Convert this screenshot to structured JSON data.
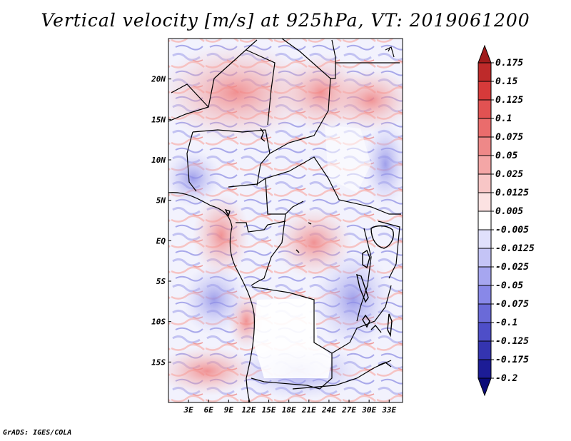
{
  "title": "Vertical velocity [m/s] at 925hPa, VT: 2019061200",
  "footer": "GrADS: IGES/COLA",
  "chart_data": {
    "type": "heatmap",
    "variable": "Vertical velocity",
    "units": "m/s",
    "level": "925hPa",
    "valid_time": "2019061200",
    "lon_range": [
      0,
      35
    ],
    "lat_range": [
      -20,
      25
    ],
    "xticks": [
      {
        "lon": 3,
        "label": "3E"
      },
      {
        "lon": 6,
        "label": "6E"
      },
      {
        "lon": 9,
        "label": "9E"
      },
      {
        "lon": 12,
        "label": "12E"
      },
      {
        "lon": 15,
        "label": "15E"
      },
      {
        "lon": 18,
        "label": "18E"
      },
      {
        "lon": 21,
        "label": "21E"
      },
      {
        "lon": 24,
        "label": "24E"
      },
      {
        "lon": 27,
        "label": "27E"
      },
      {
        "lon": 30,
        "label": "30E"
      },
      {
        "lon": 33,
        "label": "33E"
      }
    ],
    "yticks": [
      {
        "lat": 20,
        "label": "20N"
      },
      {
        "lat": 15,
        "label": "15N"
      },
      {
        "lat": 10,
        "label": "10N"
      },
      {
        "lat": 5,
        "label": "5N"
      },
      {
        "lat": 0,
        "label": "EQ"
      },
      {
        "lat": -5,
        "label": "5S"
      },
      {
        "lat": -10,
        "label": "10S"
      },
      {
        "lat": -15,
        "label": "15S"
      }
    ],
    "colorbar": {
      "labels": [
        "0.175",
        "0.15",
        "0.125",
        "0.1",
        "0.075",
        "0.05",
        "0.025",
        "0.0125",
        "0.005",
        "-0.005",
        "-0.0125",
        "-0.025",
        "-0.05",
        "-0.075",
        "-0.1",
        "-0.125",
        "-0.175",
        "-0.2"
      ],
      "colors": [
        "#a01c1c",
        "#be2a2a",
        "#d63a3a",
        "#e15252",
        "#ea6c6c",
        "#ee8888",
        "#f4a6a6",
        "#f8c6c6",
        "#fce2e2",
        "#ffffff",
        "#e0e0fc",
        "#c4c4f6",
        "#a6a6f0",
        "#8888e8",
        "#6a6ad8",
        "#4e4ec8",
        "#3434b0",
        "#1c1c96",
        "#0a0a78"
      ]
    }
  }
}
